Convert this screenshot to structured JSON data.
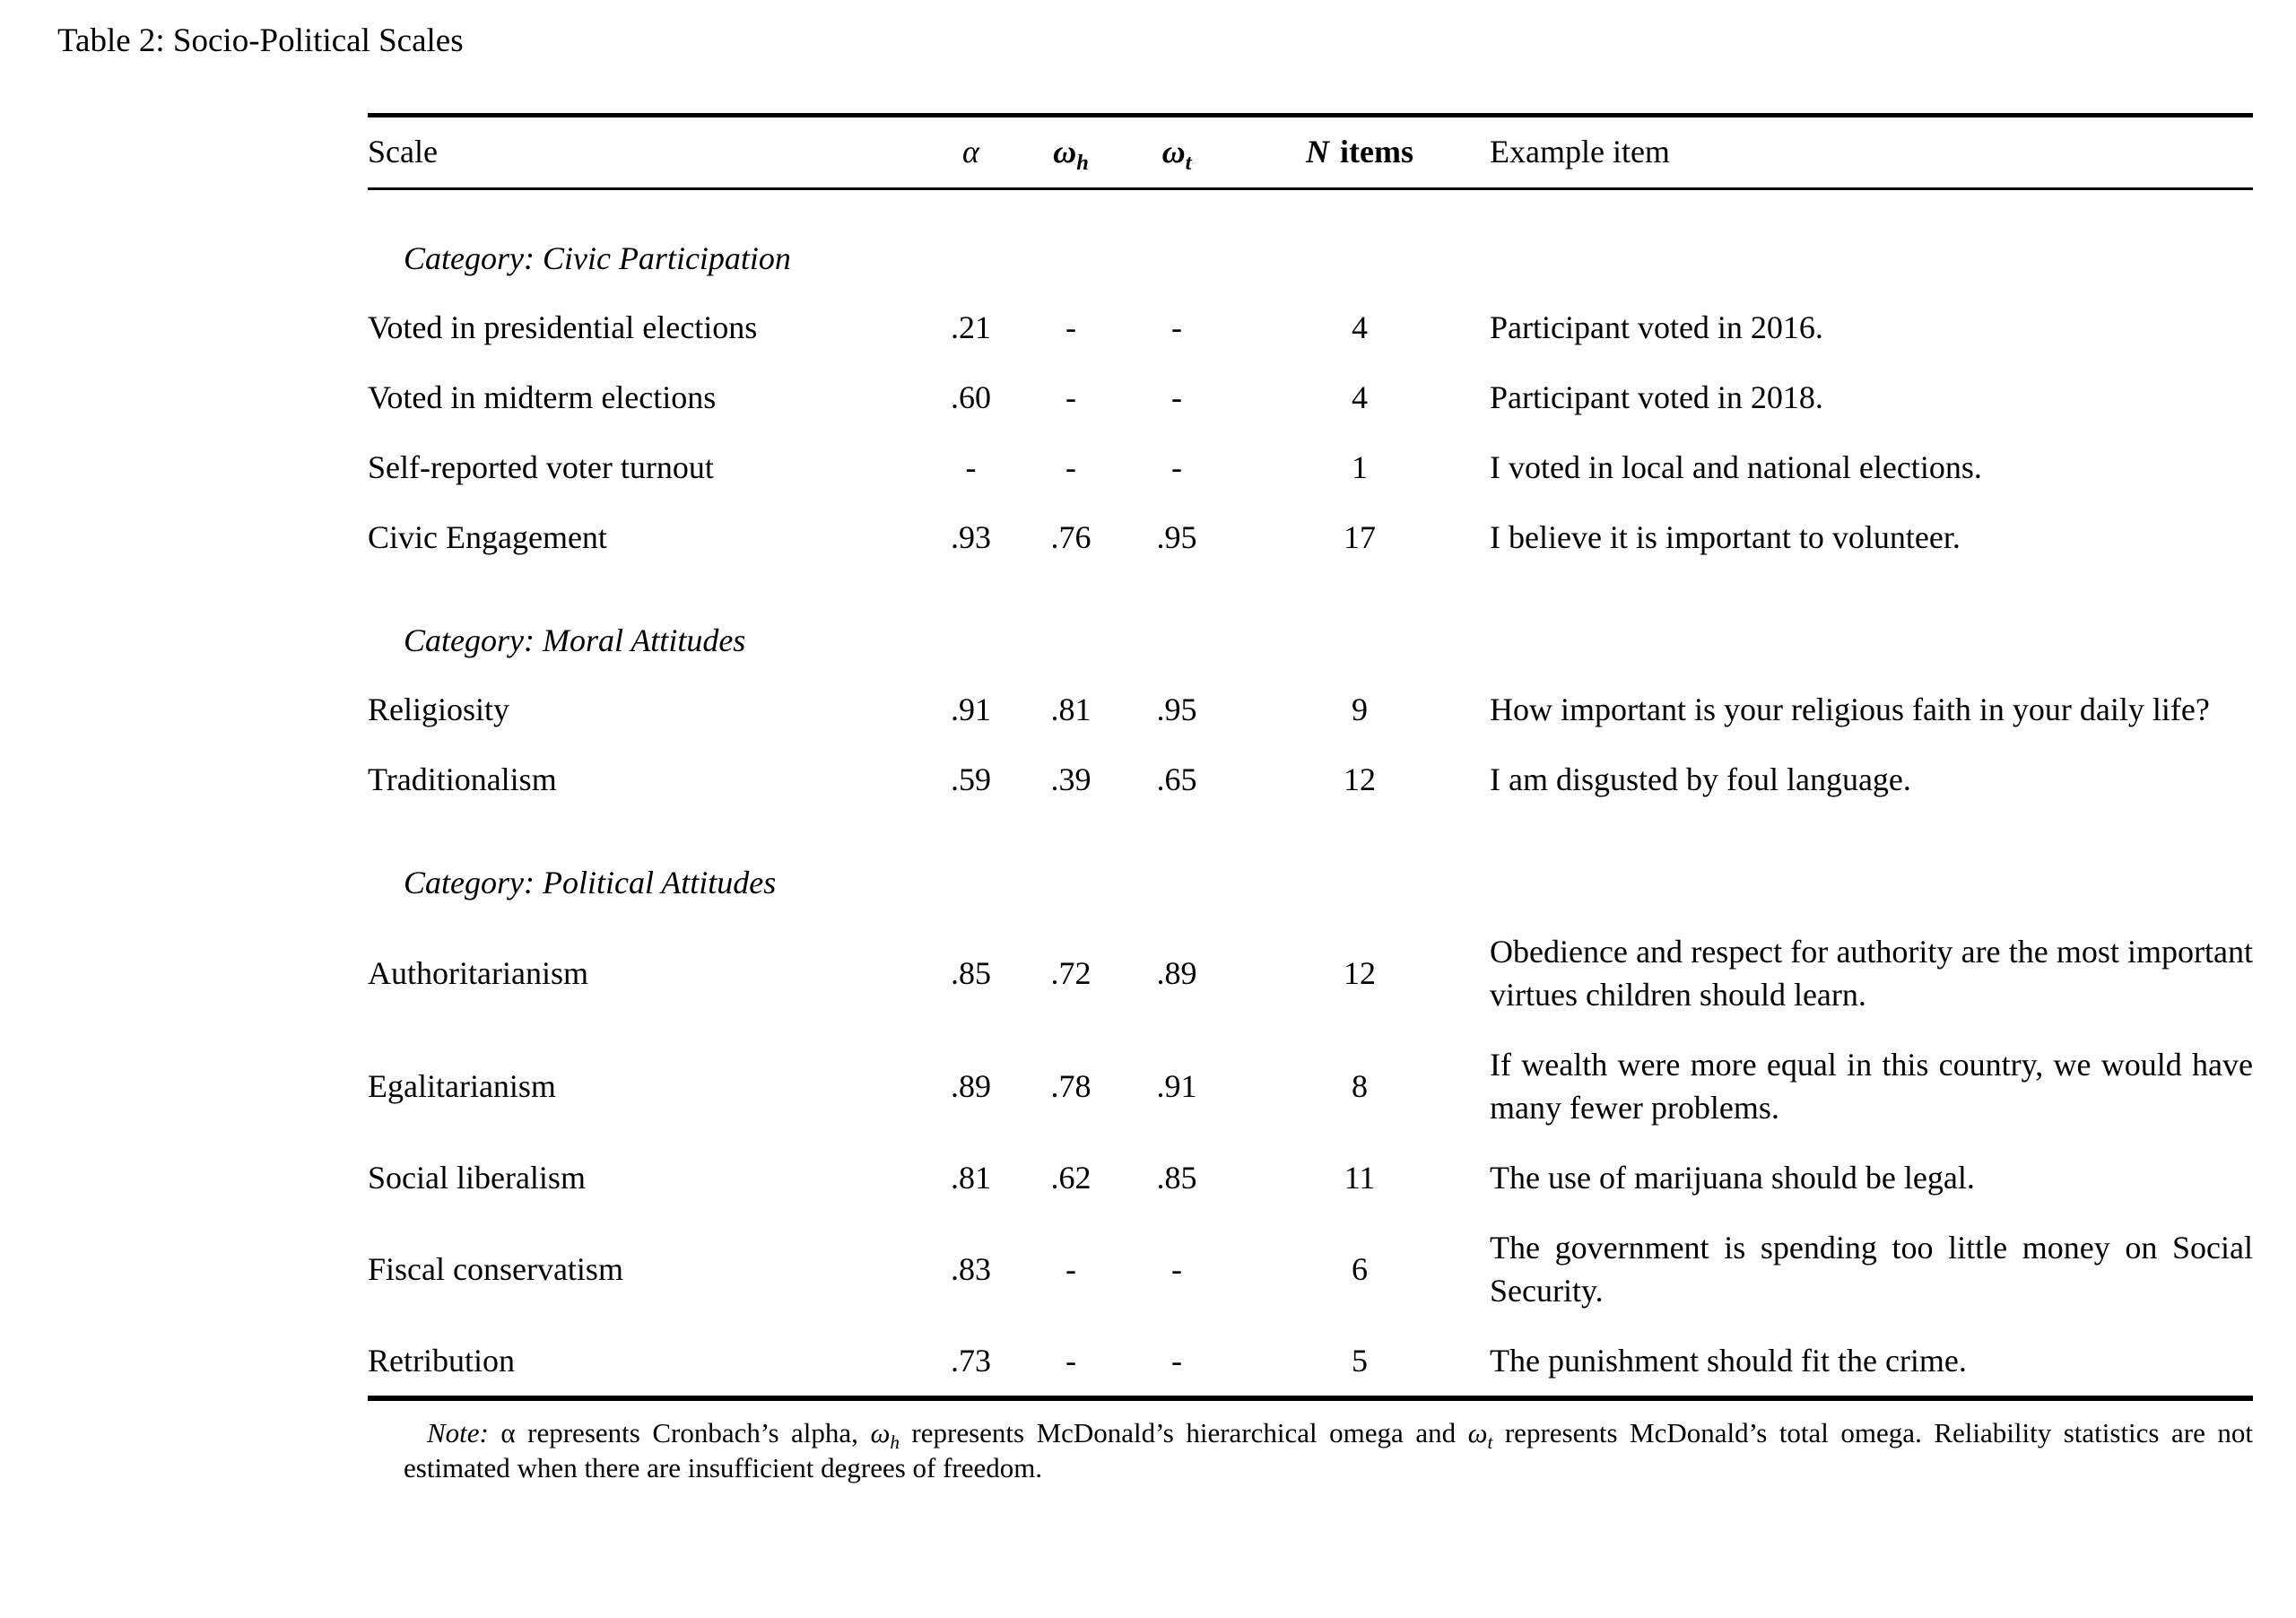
{
  "caption": "Table 2: Socio-Political Scales",
  "header": {
    "scale": "Scale",
    "alpha": "α",
    "omega": "ω",
    "sub_h": "h",
    "sub_t": "t",
    "n": "N",
    "items": "items",
    "example": "Example item"
  },
  "rows": [
    {
      "type": "category",
      "label": "Category: Civic Participation"
    },
    {
      "type": "scale",
      "name": "Voted in presidential elections",
      "alpha": ".21",
      "omega_h": "-",
      "omega_t": "-",
      "n_items": "4",
      "example": "Participant voted in 2016."
    },
    {
      "type": "scale",
      "name": "Voted in midterm elections",
      "alpha": ".60",
      "omega_h": "-",
      "omega_t": "-",
      "n_items": "4",
      "example": "Participant voted in 2018."
    },
    {
      "type": "scale",
      "name": "Self-reported voter turnout",
      "alpha": "-",
      "omega_h": "-",
      "omega_t": "-",
      "n_items": "1",
      "example": "I voted in local and national elections."
    },
    {
      "type": "scale",
      "name": "Civic Engagement",
      "alpha": ".93",
      "omega_h": ".76",
      "omega_t": ".95",
      "n_items": "17",
      "example": "I believe it is important to volunteer."
    },
    {
      "type": "category",
      "label": "Category: Moral Attitudes"
    },
    {
      "type": "scale",
      "name": "Religiosity",
      "alpha": ".91",
      "omega_h": ".81",
      "omega_t": ".95",
      "n_items": "9",
      "example": "How important is your religious faith in your daily life?"
    },
    {
      "type": "scale",
      "name": "Traditionalism",
      "alpha": ".59",
      "omega_h": ".39",
      "omega_t": ".65",
      "n_items": "12",
      "example": "I am disgusted by foul language."
    },
    {
      "type": "category",
      "label": "Category: Political Attitudes"
    },
    {
      "type": "scale",
      "name": "Authoritarianism",
      "alpha": ".85",
      "omega_h": ".72",
      "omega_t": ".89",
      "n_items": "12",
      "example": "Obedience and respect for authority are the most important virtues children should learn."
    },
    {
      "type": "scale",
      "name": "Egalitarianism",
      "alpha": ".89",
      "omega_h": ".78",
      "omega_t": ".91",
      "n_items": "8",
      "example": "If wealth were more equal in this country, we would have many fewer problems."
    },
    {
      "type": "scale",
      "name": "Social liberalism",
      "alpha": ".81",
      "omega_h": ".62",
      "omega_t": ".85",
      "n_items": "11",
      "example": "The use of marijuana should be legal."
    },
    {
      "type": "scale",
      "name": "Fiscal conservatism",
      "alpha": ".83",
      "omega_h": "-",
      "omega_t": "-",
      "n_items": "6",
      "example": "The government is spending too little money on Social Security."
    },
    {
      "type": "scale",
      "name": "Retribution",
      "alpha": ".73",
      "omega_h": "-",
      "omega_t": "-",
      "n_items": "5",
      "example": "The punishment should fit the crime."
    }
  ],
  "note": {
    "label": "Note:",
    "s1": " α represents Cronbach’s alpha, ",
    "sym_h": "ω",
    "sub_h": "h",
    "s2": " represents McDonald’s hierarchical omega and ",
    "sym_t": "ω",
    "sub_t": "t",
    "s3": " represents McDonald’s total omega. Reliability statistics are not estimated when there are insufficient degrees of freedom."
  }
}
